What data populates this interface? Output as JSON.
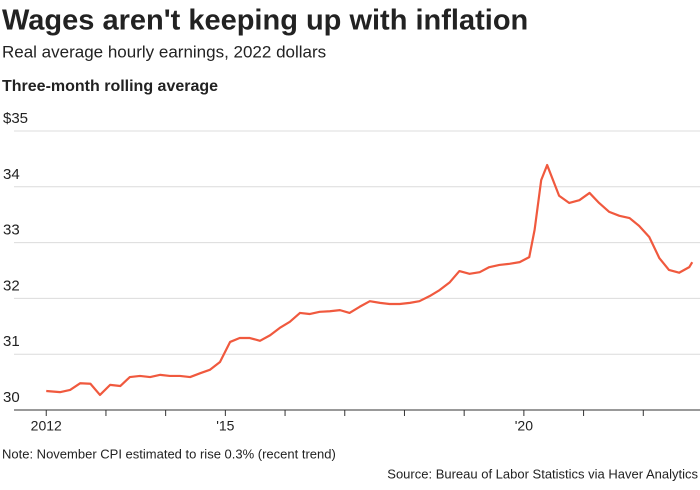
{
  "chart_data": {
    "type": "line",
    "title": "Wages aren't keeping up with inflation",
    "subtitle": "Real average hourly earnings, 2022 dollars",
    "y_label": "Three-month rolling average",
    "note": "Note: November CPI estimated to rise 0.3% (recent trend)",
    "source": "Source: Bureau of Labor Statistics via Haver Analytics",
    "color": "#f0593e",
    "x": [
      2012.0,
      2012.23,
      2012.4,
      2012.57,
      2012.74,
      2012.9,
      2013.07,
      2013.24,
      2013.4,
      2013.57,
      2013.74,
      2013.91,
      2014.07,
      2014.24,
      2014.41,
      2014.58,
      2014.74,
      2014.91,
      2015.08,
      2015.24,
      2015.41,
      2015.58,
      2015.75,
      2015.91,
      2016.08,
      2016.25,
      2016.41,
      2016.58,
      2016.75,
      2016.92,
      2017.08,
      2017.25,
      2017.42,
      2017.59,
      2017.75,
      2017.92,
      2018.09,
      2018.25,
      2018.42,
      2018.59,
      2018.76,
      2018.92,
      2019.09,
      2019.26,
      2019.42,
      2019.59,
      2019.76,
      2019.93,
      2020.09,
      2020.18,
      2020.29,
      2020.39,
      2020.59,
      2020.76,
      2020.93,
      2021.1,
      2021.26,
      2021.43,
      2021.6,
      2021.77,
      2021.93,
      2022.1,
      2022.27,
      2022.43,
      2022.6,
      2022.77,
      2022.82
    ],
    "values": [
      30.34,
      30.32,
      30.36,
      30.48,
      30.47,
      30.27,
      30.45,
      30.43,
      30.59,
      30.61,
      30.59,
      30.63,
      30.61,
      30.61,
      30.59,
      30.66,
      30.72,
      30.86,
      31.22,
      31.29,
      31.29,
      31.24,
      31.34,
      31.47,
      31.58,
      31.74,
      31.72,
      31.76,
      31.77,
      31.79,
      31.74,
      31.85,
      31.95,
      31.92,
      31.9,
      31.9,
      31.92,
      31.95,
      32.04,
      32.15,
      32.29,
      32.49,
      32.44,
      32.47,
      32.56,
      32.6,
      32.62,
      32.65,
      32.74,
      33.23,
      34.12,
      34.39,
      33.84,
      33.71,
      33.76,
      33.89,
      33.71,
      33.55,
      33.48,
      33.44,
      33.3,
      33.1,
      32.72,
      32.51,
      32.46,
      32.56,
      32.65
    ],
    "xlim": [
      2011.46,
      2022.95
    ],
    "xticks": [
      2012,
      {
        "value": 2015,
        "label": "'15"
      },
      {
        "value": 2020,
        "label": "'20"
      }
    ],
    "minor_xticks": [
      2013,
      2014,
      2016,
      2017,
      2018,
      2019,
      2021,
      2022
    ],
    "ylim": [
      30,
      35
    ],
    "yticks": [
      {
        "value": 35,
        "label": "$35"
      },
      34,
      33,
      32,
      31,
      30
    ],
    "grid": true
  }
}
